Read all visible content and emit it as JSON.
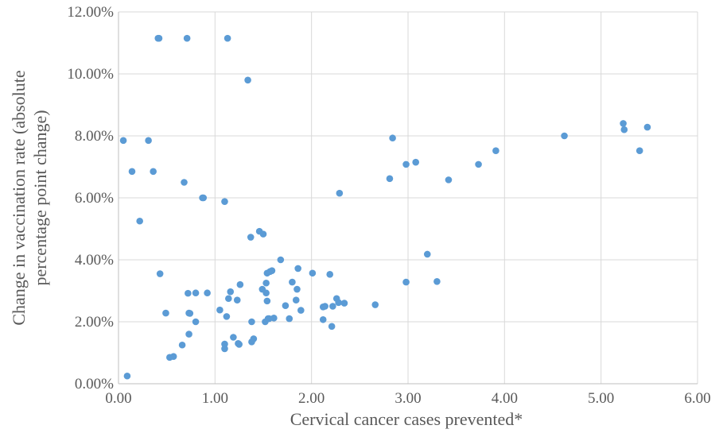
{
  "chart_data": {
    "type": "scatter",
    "title": "",
    "xlabel": "Cervical cancer cases prevented*",
    "ylabel_lines": [
      "Change in vaccination rate (absolute",
      "percentage point change)"
    ],
    "xlim": [
      0,
      6
    ],
    "ylim": [
      0,
      12
    ],
    "x_ticks": [
      "0.00",
      "1.00",
      "2.00",
      "3.00",
      "4.00",
      "5.00",
      "6.00"
    ],
    "y_ticks": [
      "0.00%",
      "2.00%",
      "4.00%",
      "6.00%",
      "8.00%",
      "10.00%",
      "12.00%"
    ],
    "grid": true,
    "legend": "none",
    "marker_color": "#5b9bd5",
    "series": [
      {
        "points": [
          [
            0.05,
            7.85
          ],
          [
            0.09,
            0.25
          ],
          [
            0.14,
            6.85
          ],
          [
            0.22,
            5.25
          ],
          [
            0.31,
            7.85
          ],
          [
            0.36,
            6.85
          ],
          [
            0.41,
            11.15
          ],
          [
            0.42,
            11.15
          ],
          [
            0.43,
            3.55
          ],
          [
            0.49,
            2.28
          ],
          [
            0.53,
            0.85
          ],
          [
            0.57,
            0.88
          ],
          [
            0.66,
            1.25
          ],
          [
            0.68,
            6.5
          ],
          [
            0.71,
            11.15
          ],
          [
            0.72,
            2.92
          ],
          [
            0.73,
            1.6
          ],
          [
            0.73,
            2.28
          ],
          [
            0.74,
            2.27
          ],
          [
            0.8,
            2.0
          ],
          [
            0.8,
            2.93
          ],
          [
            0.87,
            6.0
          ],
          [
            0.88,
            6.0
          ],
          [
            0.92,
            2.93
          ],
          [
            1.05,
            2.38
          ],
          [
            1.1,
            1.13
          ],
          [
            1.1,
            1.28
          ],
          [
            1.1,
            5.88
          ],
          [
            1.12,
            2.17
          ],
          [
            1.13,
            11.15
          ],
          [
            1.14,
            2.75
          ],
          [
            1.16,
            2.97
          ],
          [
            1.19,
            1.5
          ],
          [
            1.23,
            2.7
          ],
          [
            1.24,
            1.3
          ],
          [
            1.25,
            1.27
          ],
          [
            1.26,
            3.2
          ],
          [
            1.34,
            9.8
          ],
          [
            1.37,
            4.73
          ],
          [
            1.38,
            2.0
          ],
          [
            1.38,
            1.35
          ],
          [
            1.4,
            1.45
          ],
          [
            1.46,
            4.92
          ],
          [
            1.49,
            3.05
          ],
          [
            1.5,
            4.83
          ],
          [
            1.52,
            2.0
          ],
          [
            1.53,
            2.93
          ],
          [
            1.53,
            3.25
          ],
          [
            1.54,
            2.67
          ],
          [
            1.54,
            3.57
          ],
          [
            1.55,
            2.1
          ],
          [
            1.56,
            2.1
          ],
          [
            1.57,
            3.62
          ],
          [
            1.59,
            3.65
          ],
          [
            1.61,
            2.12
          ],
          [
            1.68,
            4.0
          ],
          [
            1.73,
            2.52
          ],
          [
            1.77,
            2.1
          ],
          [
            1.8,
            3.28
          ],
          [
            1.84,
            2.7
          ],
          [
            1.85,
            3.05
          ],
          [
            1.86,
            3.72
          ],
          [
            1.89,
            2.37
          ],
          [
            2.01,
            3.57
          ],
          [
            2.12,
            2.07
          ],
          [
            2.12,
            2.48
          ],
          [
            2.14,
            2.5
          ],
          [
            2.19,
            3.53
          ],
          [
            2.21,
            1.85
          ],
          [
            2.22,
            2.5
          ],
          [
            2.26,
            2.75
          ],
          [
            2.28,
            2.62
          ],
          [
            2.29,
            6.15
          ],
          [
            2.34,
            2.6
          ],
          [
            2.66,
            2.55
          ],
          [
            2.81,
            6.62
          ],
          [
            2.84,
            7.93
          ],
          [
            2.98,
            3.28
          ],
          [
            2.98,
            7.08
          ],
          [
            3.08,
            7.15
          ],
          [
            3.2,
            4.18
          ],
          [
            3.3,
            3.3
          ],
          [
            3.42,
            6.58
          ],
          [
            3.73,
            7.08
          ],
          [
            3.91,
            7.52
          ],
          [
            4.62,
            8.0
          ],
          [
            5.23,
            8.4
          ],
          [
            5.24,
            8.2
          ],
          [
            5.4,
            7.52
          ],
          [
            5.48,
            8.28
          ]
        ]
      }
    ]
  }
}
